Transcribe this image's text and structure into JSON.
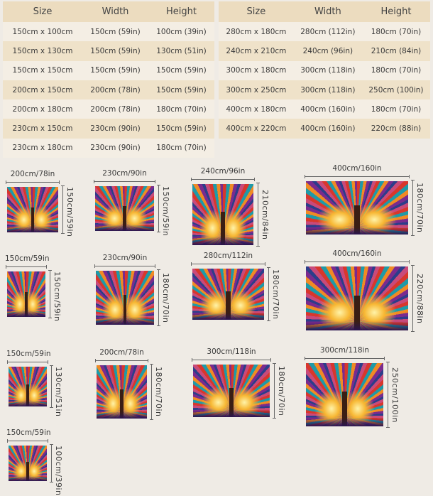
{
  "headers": [
    "Size",
    "Width",
    "Height"
  ],
  "left_table": [
    [
      "150cm x 100cm",
      "150cm (59in)",
      "100cm (39in)"
    ],
    [
      "150cm x 130cm",
      "150cm (59in)",
      "130cm (51in)"
    ],
    [
      "150cm x 150cm",
      "150cm (59in)",
      "150cm (59in)"
    ],
    [
      "200cm x 150cm",
      "200cm (78in)",
      "150cm (59in)"
    ],
    [
      "200cm x 180cm",
      "200cm (78in)",
      "180cm (70in)"
    ],
    [
      "230cm x 150cm",
      "230cm (90in)",
      "150cm (59in)"
    ],
    [
      "230cm x 180cm",
      "230cm (90in)",
      "180cm (70in)"
    ]
  ],
  "right_table": [
    [
      "280cm x 180cm",
      "280cm (112in)",
      "180cm (70in)"
    ],
    [
      "240cm x 210cm",
      "240cm (96in)",
      "210cm (84in)"
    ],
    [
      "300cm x 180cm",
      "300cm (118in)",
      "180cm (70in)"
    ],
    [
      "300cm x 250cm",
      "300cm (118in)",
      "250cm (100in)"
    ],
    [
      "400cm x 180cm",
      "400cm (160in)",
      "180cm (70in)"
    ],
    [
      "400cm x 220cm",
      "400cm (160in)",
      "220cm (88in)"
    ]
  ],
  "panels": [
    {
      "w": "200cm/78in",
      "h": "150cm/59in"
    },
    {
      "w": "230cm/90in",
      "h": "150cm/59in"
    },
    {
      "w": "240cm/96in",
      "h": "210cm/84in"
    },
    {
      "w": "400cm/160in",
      "h": "180cm/70in"
    },
    {
      "w": "150cm/59in",
      "h": "150cm/59in"
    },
    {
      "w": "230cm/90in",
      "h": "180cm/70in"
    },
    {
      "w": "280cm/112in",
      "h": "180cm/70in"
    },
    {
      "w": "400cm/160in",
      "h": "220cm/88in"
    },
    {
      "w": "150cm/59in",
      "h": "130cm/51in"
    },
    {
      "w": "200cm/78in",
      "h": "180cm/70in"
    },
    {
      "w": "300cm/118in",
      "h": "180cm/70in"
    },
    {
      "w": "300cm/118in",
      "h": "250cm/100in"
    },
    {
      "w": "150cm/59in",
      "h": "100cm/39in"
    }
  ]
}
